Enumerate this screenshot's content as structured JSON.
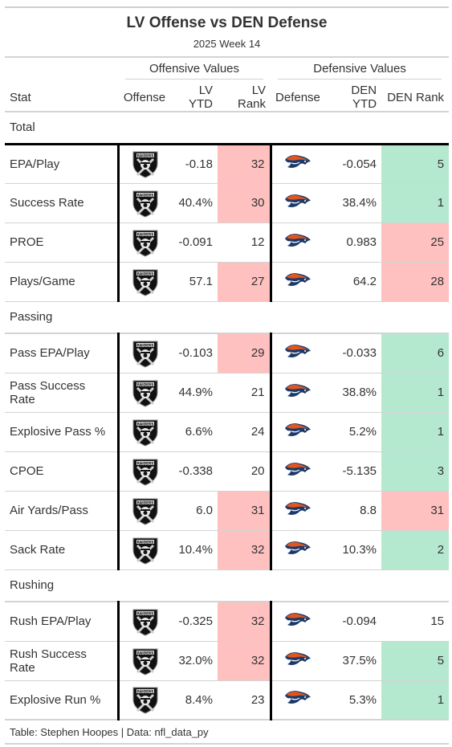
{
  "title": "LV Offense vs DEN Defense",
  "subtitle": "2025 Week 14",
  "spanners": {
    "offense": "Offensive Values",
    "defense": "Defensive Values"
  },
  "columns": {
    "stat": "Stat",
    "offense": "Offense",
    "lv_ytd": "LV YTD",
    "lv_rank": "LV Rank",
    "defense": "Defense",
    "den_ytd": "DEN YTD",
    "den_rank": "DEN Rank"
  },
  "logos": {
    "offense": "raiders-logo",
    "defense": "broncos-logo"
  },
  "colors": {
    "bad_rank": "#ffc0c0",
    "good_rank": "#b5e9cf"
  },
  "groups": [
    {
      "name": "Total",
      "rows": [
        {
          "stat": "EPA/Play",
          "lv_ytd": "-0.18",
          "lv_rank": "32",
          "lv_shade": "bad",
          "den_ytd": "-0.054",
          "den_rank": "5",
          "den_shade": "good"
        },
        {
          "stat": "Success Rate",
          "lv_ytd": "40.4%",
          "lv_rank": "30",
          "lv_shade": "bad",
          "den_ytd": "38.4%",
          "den_rank": "1",
          "den_shade": "good"
        },
        {
          "stat": "PROE",
          "lv_ytd": "-0.091",
          "lv_rank": "12",
          "lv_shade": "",
          "den_ytd": "0.983",
          "den_rank": "25",
          "den_shade": "bad"
        },
        {
          "stat": "Plays/Game",
          "lv_ytd": "57.1",
          "lv_rank": "27",
          "lv_shade": "bad",
          "den_ytd": "64.2",
          "den_rank": "28",
          "den_shade": "bad"
        }
      ]
    },
    {
      "name": "Passing",
      "rows": [
        {
          "stat": "Pass EPA/Play",
          "lv_ytd": "-0.103",
          "lv_rank": "29",
          "lv_shade": "bad",
          "den_ytd": "-0.033",
          "den_rank": "6",
          "den_shade": "good"
        },
        {
          "stat": "Pass Success Rate",
          "lv_ytd": "44.9%",
          "lv_rank": "21",
          "lv_shade": "",
          "den_ytd": "38.8%",
          "den_rank": "1",
          "den_shade": "good"
        },
        {
          "stat": "Explosive Pass %",
          "lv_ytd": "6.6%",
          "lv_rank": "24",
          "lv_shade": "",
          "den_ytd": "5.2%",
          "den_rank": "1",
          "den_shade": "good"
        },
        {
          "stat": "CPOE",
          "lv_ytd": "-0.338",
          "lv_rank": "20",
          "lv_shade": "",
          "den_ytd": "-5.135",
          "den_rank": "3",
          "den_shade": "good"
        },
        {
          "stat": "Air Yards/Pass",
          "lv_ytd": "6.0",
          "lv_rank": "31",
          "lv_shade": "bad",
          "den_ytd": "8.8",
          "den_rank": "31",
          "den_shade": "bad"
        },
        {
          "stat": "Sack Rate",
          "lv_ytd": "10.4%",
          "lv_rank": "32",
          "lv_shade": "bad",
          "den_ytd": "10.3%",
          "den_rank": "2",
          "den_shade": "good"
        }
      ]
    },
    {
      "name": "Rushing",
      "rows": [
        {
          "stat": "Rush EPA/Play",
          "lv_ytd": "-0.325",
          "lv_rank": "32",
          "lv_shade": "bad",
          "den_ytd": "-0.094",
          "den_rank": "15",
          "den_shade": ""
        },
        {
          "stat": "Rush Success Rate",
          "lv_ytd": "32.0%",
          "lv_rank": "32",
          "lv_shade": "bad",
          "den_ytd": "37.5%",
          "den_rank": "5",
          "den_shade": "good"
        },
        {
          "stat": "Explosive Run %",
          "lv_ytd": "8.4%",
          "lv_rank": "23",
          "lv_shade": "",
          "den_ytd": "5.3%",
          "den_rank": "1",
          "den_shade": "good"
        }
      ]
    }
  ],
  "footer": "Table: Stephen Hoopes | Data: nfl_data_py"
}
